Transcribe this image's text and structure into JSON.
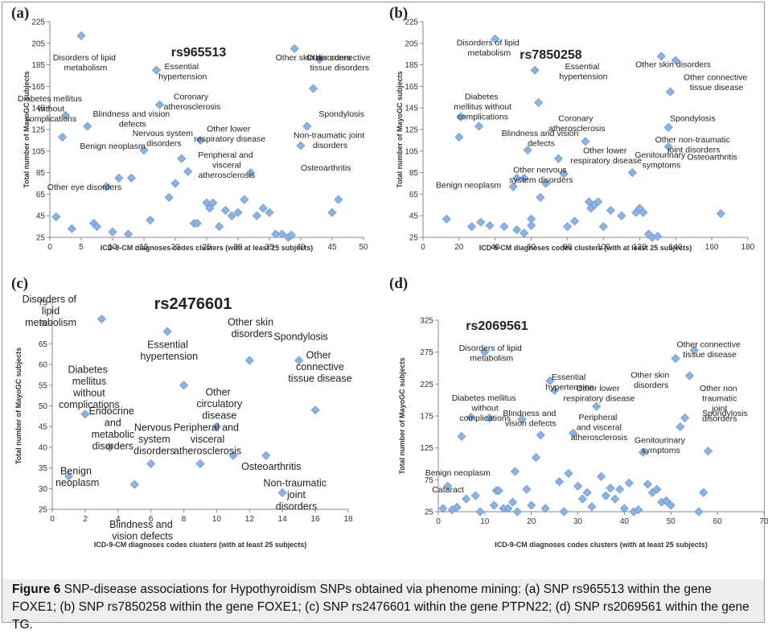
{
  "chart_data": [
    {
      "type": "scatter",
      "panel": "(a)",
      "title": "rs965513",
      "xlabel": "ICD-9-CM diagnoses codes clusters (with at least 25 subjects)",
      "ylabel": "Total number of MayoGC subjects",
      "x": [
        1,
        3.5,
        5,
        6,
        2,
        2.5,
        7,
        7.5,
        9,
        10,
        11,
        12.5,
        13,
        15,
        16,
        17,
        17.5,
        19,
        20,
        21,
        22,
        23,
        23.5,
        24,
        25,
        25.5,
        26,
        27,
        28,
        29,
        30,
        31,
        32,
        33,
        34,
        35,
        36,
        37,
        38,
        38.5,
        39,
        40,
        41,
        42,
        43,
        45,
        46
      ],
      "values": [
        44,
        33,
        212,
        128,
        118,
        138,
        38,
        35,
        72,
        30,
        80,
        28,
        80,
        106,
        41,
        180,
        148,
        62,
        75,
        98,
        86,
        38,
        38,
        115,
        57,
        52,
        57,
        35,
        50,
        45,
        48,
        60,
        85,
        45,
        52,
        48,
        28,
        28,
        25,
        27,
        200,
        110,
        128,
        163,
        190,
        48,
        60
      ],
      "xlim": [
        0,
        50
      ],
      "xticks": [
        0,
        5,
        10,
        15,
        20,
        25,
        30,
        35,
        40,
        45,
        50
      ],
      "ylim": [
        25,
        225
      ],
      "yticks": [
        25,
        45,
        65,
        85,
        105,
        125,
        145,
        165,
        185,
        205,
        225
      ],
      "color": "#8db3e2",
      "annotations": [
        "Disorders of lipid metabolism",
        "Essential hypertension",
        "Coronary atherosclerosis",
        "Diabetes mellitus without complications",
        "Blindness and vision defects",
        "Nervous system disorders",
        "Benign neoplasm",
        "Other lower respiratory disease",
        "Peripheral and visceral atherosclerosis",
        "Other eye disorders",
        "Other skin disorders",
        "Other connective tissue disorders",
        "Spondylosis",
        "Non-traumatic joint disorders",
        "Osteoarthritis"
      ]
    },
    {
      "type": "scatter",
      "panel": "(b)",
      "title": "rs7850258",
      "xlabel": "ICD-9-CM diagnoses codes clusters (with at least 25 subjects)",
      "ylabel": "Total number of MayoGC subjects",
      "x": [
        13,
        20,
        21,
        27,
        31,
        32,
        37,
        40,
        45,
        50,
        52,
        52,
        56,
        58,
        56,
        60,
        60,
        62,
        64,
        65,
        68,
        75,
        78,
        80,
        84,
        90,
        92,
        93,
        95,
        97,
        100,
        104,
        110,
        116,
        118,
        120,
        122,
        125,
        127,
        130,
        132,
        136,
        136,
        137,
        140,
        165
      ],
      "values": [
        42,
        118,
        137,
        35,
        128,
        39,
        36,
        209,
        35,
        72,
        32,
        80,
        80,
        106,
        29,
        42,
        36,
        180,
        150,
        62,
        75,
        98,
        84,
        35,
        40,
        114,
        58,
        52,
        55,
        58,
        35,
        50,
        45,
        85,
        48,
        52,
        48,
        28,
        25,
        26,
        193,
        109,
        127,
        160,
        189,
        47
      ],
      "xlim": [
        0,
        180
      ],
      "xticks": [
        0,
        20,
        40,
        60,
        80,
        100,
        120,
        140,
        160,
        180
      ],
      "ylim": [
        25,
        225
      ],
      "yticks": [
        25,
        45,
        65,
        85,
        105,
        125,
        145,
        165,
        185,
        205,
        225
      ],
      "color": "#8db3e2",
      "annotations": [
        "Disorders of lipid metabolism",
        "Essential hypertension",
        "Other skin disorders",
        "Other connective tissue disease",
        "Diabetes mellitus without complications",
        "Coronary atherosclerosis",
        "Blindness and vision defects",
        "Spondylosis",
        "Other lower respiratory disease",
        "Other non-traumatic joint disorders",
        "Other nervous system disorders",
        "Benign neoplasm",
        "Genitourinary symptoms",
        "Osteoarthritis"
      ]
    },
    {
      "type": "scatter",
      "panel": "(c)",
      "title": "rs2476601",
      "xlabel": "ICD-9-CM diagnoses codes clusters (with at least 25 subjects)",
      "ylabel": "Total number of MayoGC subjects",
      "x": [
        1,
        2,
        3,
        3.5,
        5,
        6,
        7,
        8,
        9,
        10,
        11,
        12,
        13,
        14,
        15,
        16
      ],
      "values": [
        33,
        48,
        71,
        40,
        31,
        36,
        68,
        55,
        36,
        45,
        38,
        61,
        38,
        29,
        61,
        49
      ],
      "xlim": [
        0,
        18
      ],
      "xticks": [
        0,
        2,
        4,
        6,
        8,
        10,
        12,
        14,
        16,
        18
      ],
      "ylim": [
        25,
        75
      ],
      "yticks": [
        25,
        30,
        35,
        40,
        45,
        50,
        55,
        60,
        65,
        70,
        75
      ],
      "color": "#8db3e2",
      "annotations": [
        "Disorders of lipid metabolism",
        "Essential hypertension",
        "Other skin disorders",
        "Spondylosis",
        "Diabetes mellitus without complications",
        "Other connective tissue disease",
        "Other circulatory disease",
        "Endocrine and metabolic disorders",
        "Nervous system disorders",
        "Peripheral and visceral atherosclerosis",
        "Osteoarthritis",
        "Benign neoplasm",
        "Non-traumatic joint disorders",
        "Blindness and vision defects"
      ]
    },
    {
      "type": "scatter",
      "panel": "(d)",
      "title": "rs2069561",
      "xlabel": "ICD-9-CM diagnoses codes clusters (with at least 25 subjects)",
      "ylabel": "Total number of MayoGC subjects",
      "x": [
        1,
        2,
        3,
        4,
        5,
        6,
        7,
        8,
        9,
        10,
        11,
        12,
        12.5,
        13,
        14,
        15,
        16,
        16.5,
        17,
        18,
        19,
        20,
        21,
        22,
        23,
        24,
        25,
        26,
        27,
        28,
        29,
        30,
        31,
        32,
        33,
        34,
        35,
        36,
        37,
        38,
        39,
        40,
        41,
        42,
        43,
        44,
        45,
        46,
        47,
        48,
        49,
        50,
        51,
        52,
        53,
        54,
        55,
        56,
        57,
        58
      ],
      "values": [
        30,
        65,
        28,
        32,
        143,
        45,
        173,
        50,
        25,
        275,
        172,
        35,
        58,
        58,
        30,
        30,
        40,
        88,
        25,
        170,
        60,
        35,
        110,
        145,
        30,
        230,
        215,
        72,
        25,
        85,
        148,
        65,
        45,
        55,
        33,
        190,
        80,
        50,
        62,
        45,
        60,
        30,
        70,
        25,
        28,
        118,
        68,
        55,
        60,
        40,
        42,
        35,
        265,
        158,
        172,
        238,
        278,
        25,
        55,
        120
      ],
      "xlim": [
        0,
        70
      ],
      "xticks": [
        0,
        10,
        20,
        30,
        40,
        50,
        60,
        70
      ],
      "ylim": [
        25,
        325
      ],
      "yticks": [
        25,
        75,
        125,
        175,
        225,
        275,
        325
      ],
      "color": "#8db3e2",
      "annotations": [
        "Disorders of lipid metabolism",
        "Other connective tissue disease",
        "Essential hypertension",
        "Other skin disorders",
        "Diabetes mellitus without complications",
        "Other lower respiratory disease",
        "Other non traumatic joint disorders",
        "Spondylosis",
        "Blindness and vision defects",
        "Peripheral and visceral atherosclerosis",
        "Genitourinary symptoms",
        "Benign neoplasm",
        "Cataract"
      ]
    }
  ],
  "caption": {
    "label": "Figure 6",
    "text": "SNP-disease associations for Hypothyroidism SNPs obtained via phenome mining: (a) SNP rs965513 within the gene FOXE1; (b) SNP rs7850258 within the gene FOXE1; (c) SNP rs2476601 within the gene PTPN22; (d) SNP rs2069561 within the gene TG."
  }
}
